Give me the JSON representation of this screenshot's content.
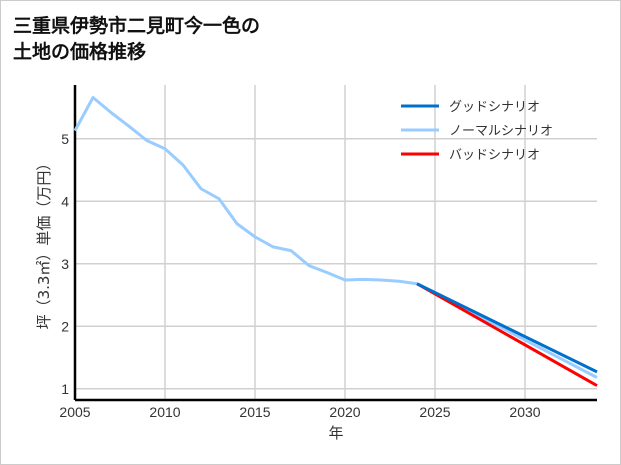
{
  "chart_data": {
    "type": "line",
    "title": "三重県伊勢市二見町今一色の\n土地の価格推移",
    "xlabel": "年",
    "ylabel": "坪（3.3㎡）単価（万円）",
    "xlim": [
      2005,
      2034
    ],
    "ylim": [
      0.82,
      5.86
    ],
    "xticks": [
      2005,
      2010,
      2015,
      2020,
      2025,
      2030
    ],
    "yticks": [
      1,
      2,
      3,
      4,
      5
    ],
    "grid": true,
    "legend_position": "top-right",
    "series": [
      {
        "name": "グッドシナリオ",
        "color": "#0070cc",
        "x": [
          2024,
          2034
        ],
        "y": [
          2.68,
          1.27
        ]
      },
      {
        "name": "ノーマルシナリオ",
        "color": "#99ccff",
        "x": [
          2005,
          2006,
          2007,
          2008,
          2009,
          2010,
          2011,
          2012,
          2013,
          2014,
          2015,
          2016,
          2017,
          2018,
          2019,
          2020,
          2021,
          2022,
          2023,
          2024,
          2034
        ],
        "y": [
          5.13,
          5.66,
          5.42,
          5.2,
          4.97,
          4.84,
          4.58,
          4.2,
          4.04,
          3.64,
          3.43,
          3.27,
          3.21,
          2.97,
          2.86,
          2.74,
          2.75,
          2.74,
          2.72,
          2.68,
          1.18
        ]
      },
      {
        "name": "バッドシナリオ",
        "color": "#ff0000",
        "x": [
          2024,
          2034
        ],
        "y": [
          2.68,
          1.05
        ]
      }
    ]
  }
}
